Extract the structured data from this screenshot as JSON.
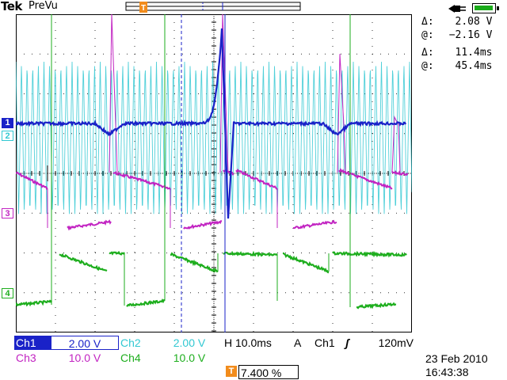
{
  "header": {
    "brand": "Tek",
    "mode": "PreVu"
  },
  "cursor_readouts": [
    {
      "symbol": "Δ:",
      "value": "2.08 V"
    },
    {
      "symbol": "@:",
      "value": "−2.16 V"
    },
    {
      "symbol": "Δ:",
      "value": "11.4ms"
    },
    {
      "symbol": "@:",
      "value": "45.4ms"
    }
  ],
  "status_icons": {
    "power": "ac-power-plug-icon",
    "battery": "battery-icon",
    "battery_color": "#1aab1a"
  },
  "trigger_marker": "T",
  "channel_markers": [
    {
      "label": "1",
      "color": "#1a22c8"
    },
    {
      "label": "2",
      "color": "#31c8d2"
    },
    {
      "label": "3",
      "color": "#c224c2"
    },
    {
      "label": "4",
      "color": "#1eae1e"
    }
  ],
  "channel_settings": [
    {
      "name": "Ch1",
      "scale": "2.00 V",
      "color": "#1a22c8"
    },
    {
      "name": "Ch2",
      "scale": "2.00 V",
      "color": "#31c8d2"
    },
    {
      "name": "Ch3",
      "scale": "10.0 V",
      "color": "#c224c2"
    },
    {
      "name": "Ch4",
      "scale": "10.0 V",
      "color": "#1eae1e"
    }
  ],
  "timebase": {
    "label": "H",
    "value": "10.0ms"
  },
  "trigger": {
    "mode": "A",
    "source": "Ch1",
    "slope_symbol": "ʃ",
    "level": "120mV"
  },
  "trigger_position": {
    "icon": "T",
    "value": "7.400 %"
  },
  "date": "23 Feb  2010",
  "time": "16:43:38",
  "colors": {
    "ch1": "#1a22c8",
    "ch2": "#31c8d2",
    "ch3": "#c224c2",
    "ch4": "#1eae1e",
    "trigger": "#f28c1c",
    "cursor": "#1a22c8"
  }
}
